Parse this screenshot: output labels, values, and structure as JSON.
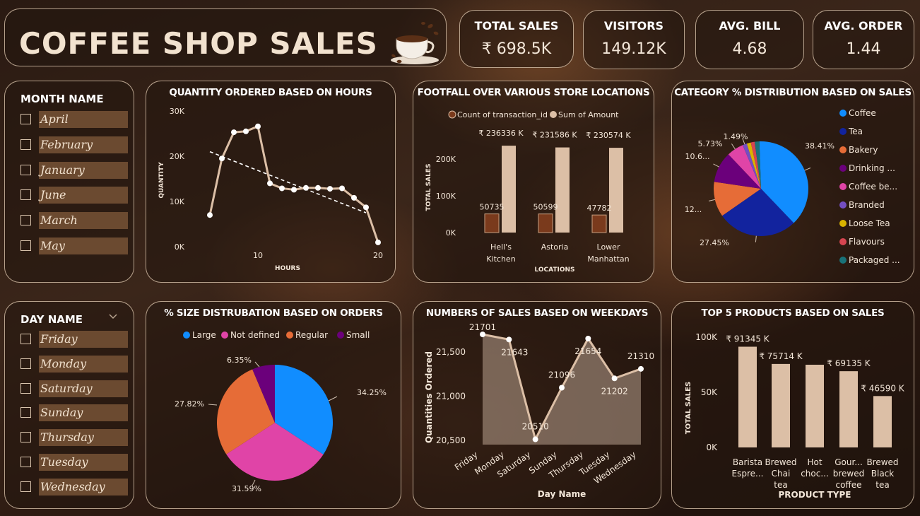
{
  "header": {
    "title": "COFFEE SHOP SALES"
  },
  "kpis": [
    {
      "label": "TOTAL SALES",
      "value": "₹ 698.5K"
    },
    {
      "label": "VISITORS",
      "value": "149.12K"
    },
    {
      "label": "AVG. BILL",
      "value": "4.68"
    },
    {
      "label": "AVG. ORDER",
      "value": "1.44"
    }
  ],
  "month_slicer": {
    "title": "MONTH NAME",
    "items": [
      "April",
      "February",
      "January",
      "June",
      "March",
      "May"
    ]
  },
  "day_slicer": {
    "title": "DAY NAME",
    "items": [
      "Friday",
      "Monday",
      "Saturday",
      "Sunday",
      "Thursday",
      "Tuesday",
      "Wednesday"
    ]
  },
  "colors": {
    "accent_bar": "#dcbfa6",
    "dark_bar": "#7a3a1c",
    "blue": "#118dff",
    "navy": "#12239e",
    "orange": "#e66c37",
    "purple": "#6b007b",
    "pink": "#e044a7",
    "violet": "#744ec2",
    "yellow": "#d9b300",
    "red": "#d64550",
    "teal": "#197278"
  },
  "chart_data": [
    {
      "id": "hours",
      "type": "line",
      "title": "QUANTITY ORDERED BASED ON HOURS",
      "xlabel": "HOURS",
      "ylabel": "QUANTITY",
      "x": [
        6,
        7,
        8,
        9,
        10,
        11,
        12,
        13,
        14,
        15,
        16,
        17,
        18,
        19,
        20
      ],
      "values": [
        7000,
        19500,
        25300,
        25500,
        26600,
        14000,
        12900,
        12600,
        13000,
        13000,
        12800,
        12900,
        10800,
        8700,
        950
      ],
      "trend": [
        [
          6,
          21000
        ],
        [
          19,
          7500
        ]
      ],
      "xlim": [
        6,
        20
      ],
      "ylim": [
        0,
        30000
      ],
      "xticks": [
        "10",
        "20"
      ],
      "yticks": [
        "0K",
        "10K",
        "20K",
        "30K"
      ]
    },
    {
      "id": "footfall",
      "type": "bar",
      "title": "FOOTFALL OVER VARIOUS STORE LOCATIONS",
      "xlabel": "LOCATIONS",
      "ylabel": "TOTAL SALES",
      "categories": [
        "Hell's Kitchen",
        "Astoria",
        "Lower Manhattan"
      ],
      "series": [
        {
          "name": "Count of transaction_id",
          "values": [
            50735,
            50599,
            47782
          ],
          "labels": [
            "50735",
            "50599",
            "47782"
          ]
        },
        {
          "name": "Sum of Amount",
          "values": [
            236336,
            231586,
            230574
          ],
          "labels": [
            "₹ 236336 K",
            "₹ 231586 K",
            "₹ 230574 K"
          ]
        }
      ],
      "ylim": [
        0,
        250000
      ],
      "yticks": [
        "0K",
        "100K",
        "200K"
      ],
      "legend": "top"
    },
    {
      "id": "category",
      "type": "pie",
      "title": "CATEGORY % DISTRIBUTION BASED ON SALES",
      "categories": [
        "Coffee",
        "Tea",
        "Bakery",
        "Drinking ...",
        "Coffee be...",
        "Branded",
        "Loose Tea",
        "Flavours",
        "Packaged ..."
      ],
      "values": [
        38.41,
        27.45,
        12.0,
        10.6,
        5.73,
        1.49,
        1.4,
        1.3,
        1.6
      ],
      "labels": [
        "38.41%",
        "27.45%",
        "12...",
        "10.6...",
        "5.73%",
        "1.49%",
        "",
        "",
        ""
      ],
      "legend": "right"
    },
    {
      "id": "size",
      "type": "pie",
      "title": "% SIZE DISTRUBATION BASED ON ORDERS",
      "categories": [
        "Large",
        "Not defined",
        "Regular",
        "Small"
      ],
      "values": [
        34.25,
        31.59,
        27.82,
        6.35
      ],
      "labels": [
        "34.25%",
        "31.59%",
        "27.82%",
        "6.35%"
      ],
      "legend": "top"
    },
    {
      "id": "weekdays",
      "type": "area",
      "title": "NUMBERS OF SALES BASED ON WEEKDAYS",
      "xlabel": "Day Name",
      "ylabel": "Quantities Ordered",
      "categories": [
        "Friday",
        "Monday",
        "Saturday",
        "Sunday",
        "Thursday",
        "Tuesday",
        "Wednesday"
      ],
      "values": [
        21701,
        21643,
        20510,
        21096,
        21654,
        21202,
        21310
      ],
      "labels": [
        "21701",
        "21643",
        "20510",
        "21096",
        "21654",
        "21202",
        "21310"
      ],
      "ylim": [
        20450,
        21750
      ],
      "yticks": [
        "20,500",
        "21,000",
        "21,500"
      ]
    },
    {
      "id": "top5",
      "type": "bar",
      "title": "TOP 5 PRODUCTS BASED ON SALES",
      "xlabel": "PRODUCT TYPE",
      "ylabel": "TOTAL SALES",
      "categories": [
        "Barista Espre...",
        "Brewed Chai tea",
        "Hot choc...",
        "Gour... brewed coffee",
        "Brewed Black tea"
      ],
      "values": [
        91345,
        75714,
        75000,
        69135,
        46590
      ],
      "labels": [
        "₹ 91345 K",
        "₹ 75714 K",
        "",
        "₹ 69135 K",
        "₹ 46590 K"
      ],
      "ylim": [
        0,
        100000
      ],
      "yticks": [
        "0K",
        "50K",
        "100K"
      ]
    }
  ]
}
